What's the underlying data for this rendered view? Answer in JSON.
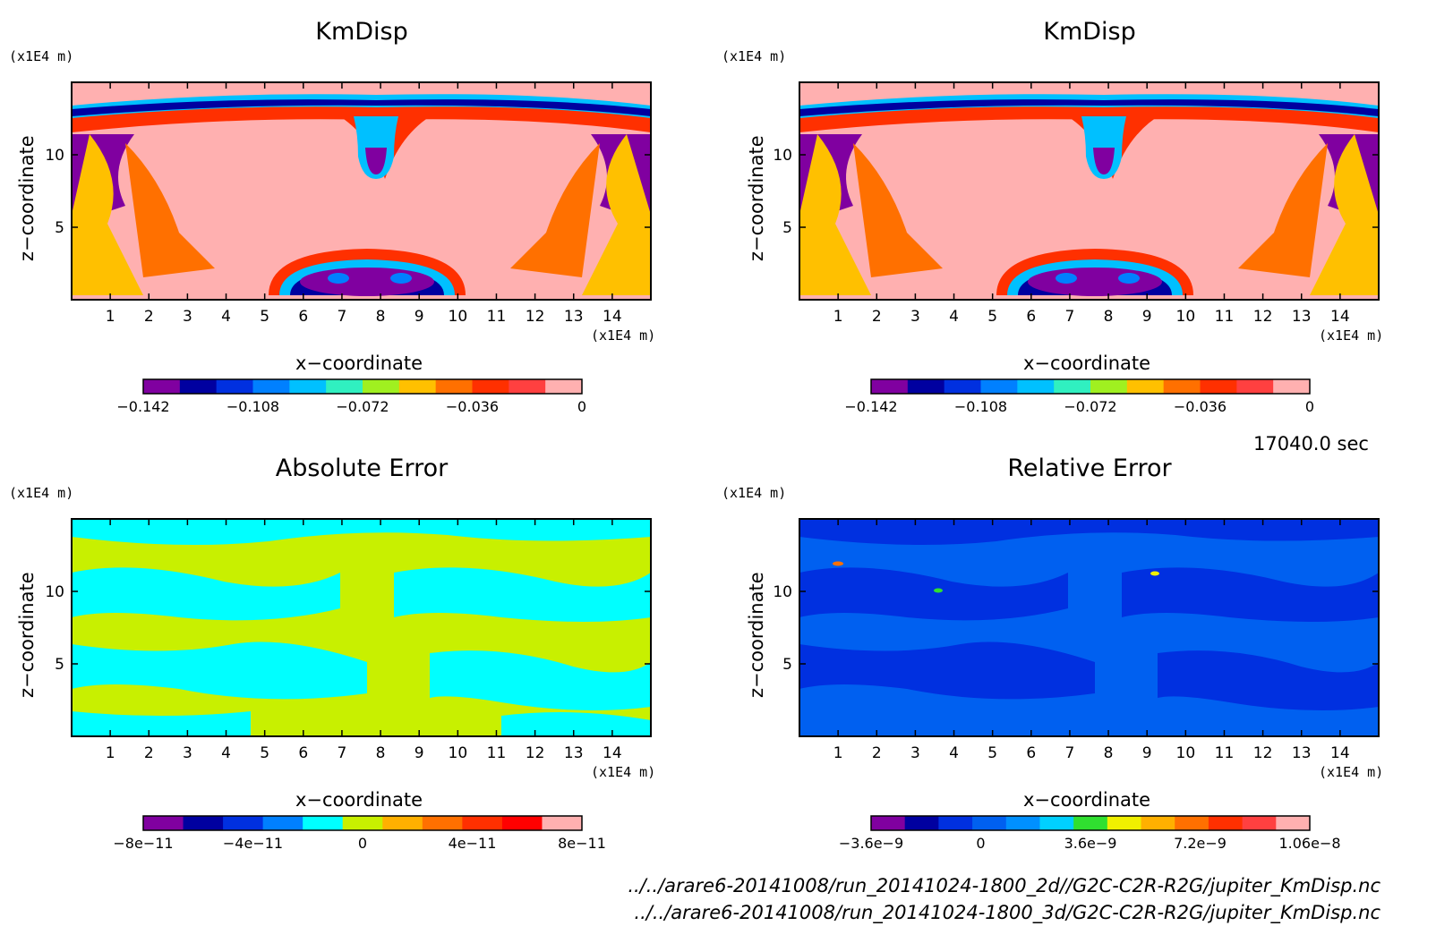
{
  "time_label": "17040.0 sec",
  "files": [
    "../../arare6-20141008/run_20141024-1800_2d//G2C-C2R-R2G/jupiter_KmDisp.nc",
    "../../arare6-20141008/run_20141024-1800_3d/G2C-C2R-R2G/jupiter_KmDisp.nc"
  ],
  "chart_data": [
    {
      "type": "heatmap",
      "title": "KmDisp",
      "xlabel": "x−coordinate",
      "ylabel": "z−coordinate",
      "x_unit": "(x1E4 m)",
      "y_unit": "(x1E4 m)",
      "xlim": [
        0,
        15
      ],
      "ylim": [
        0,
        15
      ],
      "x_ticks": [
        "1",
        "2",
        "3",
        "4",
        "5",
        "6",
        "7",
        "8",
        "9",
        "10",
        "11",
        "12",
        "13",
        "14"
      ],
      "y_ticks": [
        "5",
        "10"
      ],
      "colorbar": {
        "colors": [
          "#8000a0",
          "#0000a0",
          "#0030e0",
          "#0080ff",
          "#00c0ff",
          "#30f0c0",
          "#a0f020",
          "#ffc000",
          "#ff7000",
          "#ff3000",
          "#ff4040",
          "#ffb0b0"
        ],
        "tick_labels": [
          "−0.142",
          "−0.108",
          "−0.072",
          "−0.036",
          "0"
        ]
      }
    },
    {
      "type": "heatmap",
      "title": "KmDisp",
      "xlabel": "x−coordinate",
      "ylabel": "z−coordinate",
      "x_unit": "(x1E4 m)",
      "y_unit": "(x1E4 m)",
      "xlim": [
        0,
        15
      ],
      "ylim": [
        0,
        15
      ],
      "x_ticks": [
        "1",
        "2",
        "3",
        "4",
        "5",
        "6",
        "7",
        "8",
        "9",
        "10",
        "11",
        "12",
        "13",
        "14"
      ],
      "y_ticks": [
        "5",
        "10"
      ],
      "colorbar": {
        "colors": [
          "#8000a0",
          "#0000a0",
          "#0030e0",
          "#0080ff",
          "#00c0ff",
          "#30f0c0",
          "#a0f020",
          "#ffc000",
          "#ff7000",
          "#ff3000",
          "#ff4040",
          "#ffb0b0"
        ],
        "tick_labels": [
          "−0.142",
          "−0.108",
          "−0.072",
          "−0.036",
          "0"
        ]
      }
    },
    {
      "type": "heatmap",
      "title": "Absolute Error",
      "xlabel": "x−coordinate",
      "ylabel": "z−coordinate",
      "x_unit": "(x1E4 m)",
      "y_unit": "(x1E4 m)",
      "xlim": [
        0,
        15
      ],
      "ylim": [
        0,
        15
      ],
      "x_ticks": [
        "1",
        "2",
        "3",
        "4",
        "5",
        "6",
        "7",
        "8",
        "9",
        "10",
        "11",
        "12",
        "13",
        "14"
      ],
      "y_ticks": [
        "5",
        "10"
      ],
      "colorbar": {
        "colors": [
          "#8000a0",
          "#0000a0",
          "#0030e0",
          "#0080ff",
          "#00ffff",
          "#c8f000",
          "#ffb000",
          "#ff7000",
          "#ff3000",
          "#ff0000",
          "#ffb0b0"
        ],
        "tick_labels": [
          "−8e−11",
          "−4e−11",
          "0",
          "4e−11",
          "8e−11"
        ]
      }
    },
    {
      "type": "heatmap",
      "title": "Relative Error",
      "xlabel": "x−coordinate",
      "ylabel": "z−coordinate",
      "x_unit": "(x1E4 m)",
      "y_unit": "(x1E4 m)",
      "xlim": [
        0,
        15
      ],
      "ylim": [
        0,
        15
      ],
      "x_ticks": [
        "1",
        "2",
        "3",
        "4",
        "5",
        "6",
        "7",
        "8",
        "9",
        "10",
        "11",
        "12",
        "13",
        "14"
      ],
      "y_ticks": [
        "5",
        "10"
      ],
      "colorbar": {
        "colors": [
          "#8000a0",
          "#0000a0",
          "#0030e0",
          "#0060f0",
          "#0090ff",
          "#00d0ff",
          "#30e030",
          "#f0f000",
          "#ffb000",
          "#ff7000",
          "#ff3000",
          "#ff4040",
          "#ffb0b0"
        ],
        "tick_labels": [
          "−3.6e−9",
          "0",
          "3.6e−9",
          "7.2e−9",
          "1.06e−8"
        ]
      }
    }
  ]
}
